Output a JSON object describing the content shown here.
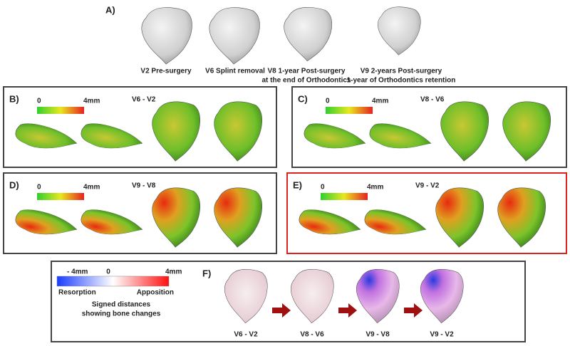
{
  "panel_a": {
    "label": "A)",
    "shapes": [
      {
        "lines": [
          "V2 Pre-surgery"
        ]
      },
      {
        "lines": [
          "V6 Splint removal"
        ]
      },
      {
        "lines": [
          "V8 1-year Post-surgery",
          "at the end of Orthodontics"
        ]
      },
      {
        "lines": [
          "V9 2-years Post-surgery",
          "1-year of Orthodontics retention"
        ]
      }
    ]
  },
  "panels": [
    {
      "label": "B)",
      "title": "V6 - V2",
      "scale_min": 0,
      "scale_max": "4mm"
    },
    {
      "label": "C)",
      "title": "V8 - V6",
      "scale_min": 0,
      "scale_max": "4mm"
    },
    {
      "label": "D)",
      "title": "V9 - V8",
      "scale_min": 0,
      "scale_max": "4mm"
    },
    {
      "label": "E)",
      "title": "V9 - V2",
      "scale_min": 0,
      "scale_max": "4mm"
    }
  ],
  "panel_f": {
    "label": "F)",
    "legend": {
      "min": "- 4mm",
      "mid": 0,
      "max": "4mm",
      "left": "Resorption",
      "right": "Apposition",
      "caption": [
        "Signed distances",
        "showing bone changes"
      ]
    },
    "shapes": [
      "V6 - V2",
      "V8 - V6",
      "V9 - V8",
      "V9 - V2"
    ]
  }
}
